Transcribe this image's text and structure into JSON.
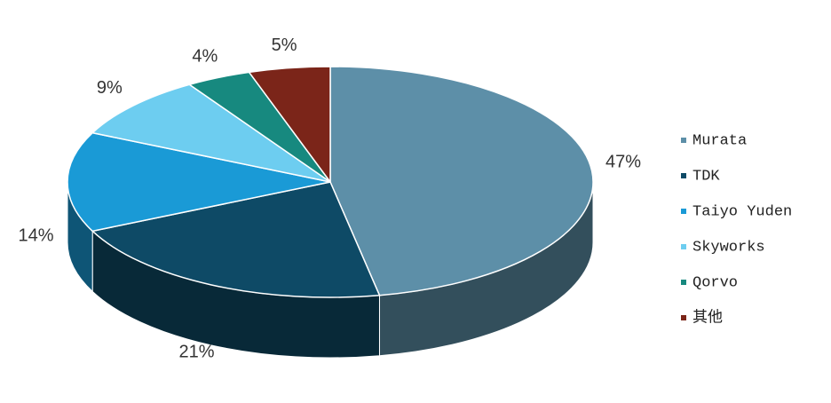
{
  "chart_data": {
    "type": "pie",
    "categories": [
      "Murata",
      "TDK",
      "Taiyo Yuden",
      "Skyworks",
      "Qorvo",
      "其他"
    ],
    "values": [
      47,
      21,
      14,
      9,
      4,
      5
    ],
    "value_labels": [
      "47%",
      "21%",
      "14%",
      "9%",
      "4%",
      "5%"
    ],
    "colors": [
      "#5d8fa8",
      "#0e4a66",
      "#1a9ad6",
      "#6dcdf0",
      "#17897f",
      "#7b2519"
    ],
    "legend": "right"
  }
}
